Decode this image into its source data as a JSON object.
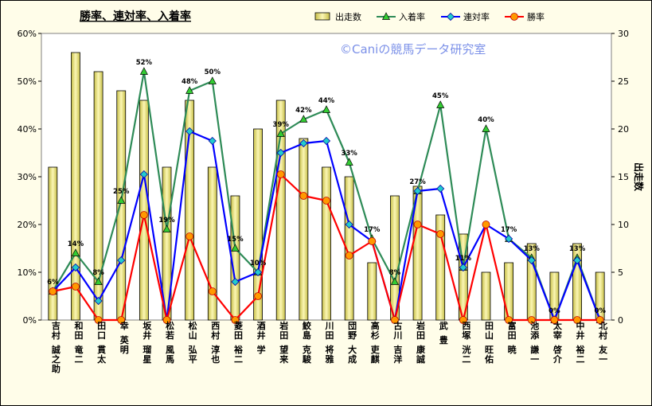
{
  "chart_data": {
    "type": "bar+line",
    "title": "勝率、連対率、入着率",
    "watermark": "©Caniの競馬データ研究室",
    "y2label": "出走数",
    "ylim": [
      0,
      60
    ],
    "yticks": [
      "0%",
      "10%",
      "20%",
      "30%",
      "40%",
      "50%",
      "60%"
    ],
    "y2lim": [
      0,
      30
    ],
    "y2ticks": [
      "0",
      "5",
      "10",
      "15",
      "20",
      "25",
      "30"
    ],
    "legend": [
      "出走数",
      "入着率",
      "連対率",
      "勝率"
    ],
    "legend_position": "top",
    "grid": false,
    "categories": [
      "吉村 誠之助",
      "和田 竜二",
      "田口 貫太",
      "幸 英明",
      "坂井 瑠星",
      "松若 風馬",
      "松山 弘平",
      "西村 淳也",
      "菱田 裕二",
      "酒井 学",
      "岩田 望来",
      "鮫島 克駿",
      "川田 将雅",
      "団野 大成",
      "高杉 吏麒",
      "古川 吉洋",
      "岩田 康誠",
      "武 豊",
      "西塚 洸二",
      "田山 旺佑",
      "富田 暁",
      "池添 謙一",
      "太宰 啓介",
      "中井 裕二",
      "北村 友一"
    ],
    "series": [
      {
        "name": "出走数",
        "type": "bar",
        "axis": "right",
        "color": "#f0e68c",
        "values": [
          16,
          28,
          26,
          24,
          23,
          16,
          23,
          16,
          13,
          20,
          23,
          19,
          16,
          15,
          6,
          13,
          14,
          11,
          9,
          5,
          6,
          8,
          5,
          8,
          5
        ]
      },
      {
        "name": "入着率",
        "type": "line",
        "color": "#2e8b57",
        "marker": "triangle",
        "labels_from": "values",
        "values": [
          6,
          14,
          8,
          25,
          52,
          19,
          48,
          50,
          15,
          10,
          39,
          42,
          44,
          33,
          17,
          8,
          27,
          45,
          11,
          40,
          17,
          13,
          0,
          13,
          0
        ]
      },
      {
        "name": "連対率",
        "type": "line",
        "color": "#0000ff",
        "marker": "diamond",
        "values": [
          6,
          11,
          4,
          12.5,
          30.5,
          0,
          39.5,
          37.5,
          8,
          10,
          35,
          37,
          37.5,
          20,
          16.5,
          0,
          27,
          27.5,
          11,
          20,
          17,
          12.5,
          0,
          12.5,
          0
        ]
      },
      {
        "name": "勝率",
        "type": "line",
        "color": "#ff0000",
        "marker": "circle",
        "values": [
          6,
          7,
          0,
          0,
          22,
          0,
          17.5,
          6,
          0,
          5,
          30.5,
          26,
          25,
          13.5,
          16.5,
          0,
          20,
          18,
          0,
          20,
          0,
          0,
          0,
          0,
          0
        ]
      }
    ]
  }
}
